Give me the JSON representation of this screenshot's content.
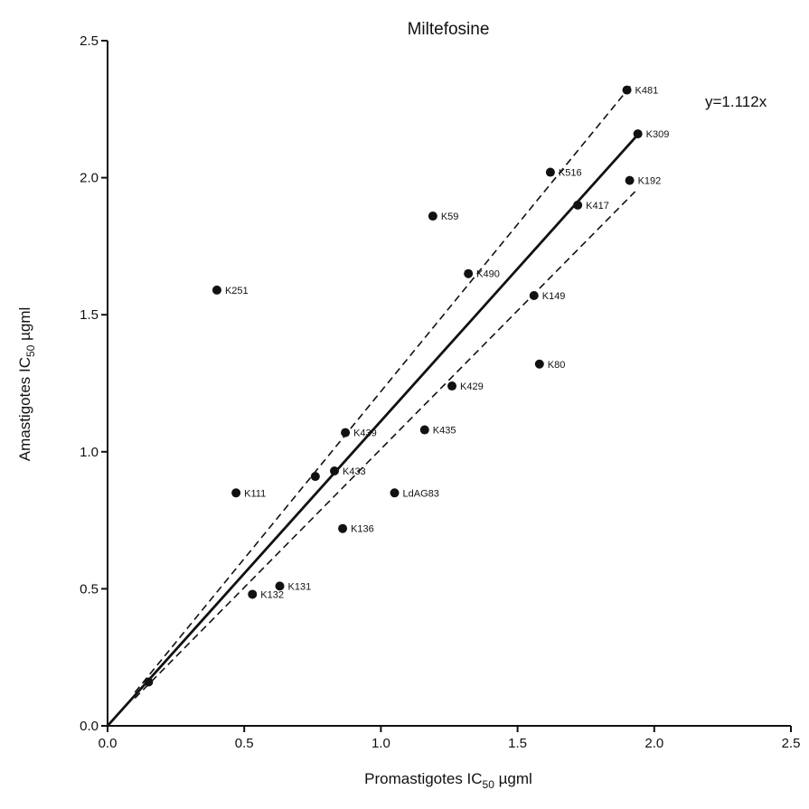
{
  "chart_data": {
    "type": "scatter",
    "title": "Miltefosine",
    "xlabel": {
      "main": "Promastigotes IC",
      "sub": "50",
      "unit": " µgml"
    },
    "ylabel": {
      "main": "Amastigotes IC",
      "sub": "50",
      "unit": " µgml"
    },
    "xlim": [
      0.0,
      2.5
    ],
    "ylim": [
      0.0,
      2.5
    ],
    "xticks": [
      "0.0",
      "0.5",
      "1.0",
      "1.5",
      "2.0",
      "2.5"
    ],
    "yticks": [
      "0.0",
      "0.5",
      "1.0",
      "1.5",
      "2.0",
      "2.5"
    ],
    "grid": false,
    "equation": "y=1.112x",
    "regression": {
      "slope": 1.112,
      "x_end": 1.94
    },
    "confidence_band": {
      "upper_slope": 1.22,
      "lower_slope": 1.01,
      "x_start": 0.1,
      "upper_x_end": 1.92,
      "lower_x_end": 1.93
    },
    "points": [
      {
        "label": "K481",
        "x": 1.9,
        "y": 2.32
      },
      {
        "label": "K309",
        "x": 1.94,
        "y": 2.16
      },
      {
        "label": "K516",
        "x": 1.62,
        "y": 2.02
      },
      {
        "label": "K192",
        "x": 1.91,
        "y": 1.99
      },
      {
        "label": "K417",
        "x": 1.72,
        "y": 1.9
      },
      {
        "label": "K59",
        "x": 1.19,
        "y": 1.86
      },
      {
        "label": "K490",
        "x": 1.32,
        "y": 1.65
      },
      {
        "label": "K251",
        "x": 0.4,
        "y": 1.59
      },
      {
        "label": "K149",
        "x": 1.56,
        "y": 1.57
      },
      {
        "label": "K80",
        "x": 1.58,
        "y": 1.32
      },
      {
        "label": "K429",
        "x": 1.26,
        "y": 1.24
      },
      {
        "label": "K435",
        "x": 1.16,
        "y": 1.08
      },
      {
        "label": "K439",
        "x": 0.87,
        "y": 1.07
      },
      {
        "label": "K433",
        "x": 0.83,
        "y": 0.93
      },
      {
        "label": "",
        "x": 0.76,
        "y": 0.91
      },
      {
        "label": "K111",
        "x": 0.47,
        "y": 0.85
      },
      {
        "label": "LdAG83",
        "x": 1.05,
        "y": 0.85
      },
      {
        "label": "K136",
        "x": 0.86,
        "y": 0.72
      },
      {
        "label": "K131",
        "x": 0.63,
        "y": 0.51
      },
      {
        "label": "K132",
        "x": 0.53,
        "y": 0.48
      },
      {
        "label": "",
        "x": 0.15,
        "y": 0.16
      }
    ]
  }
}
